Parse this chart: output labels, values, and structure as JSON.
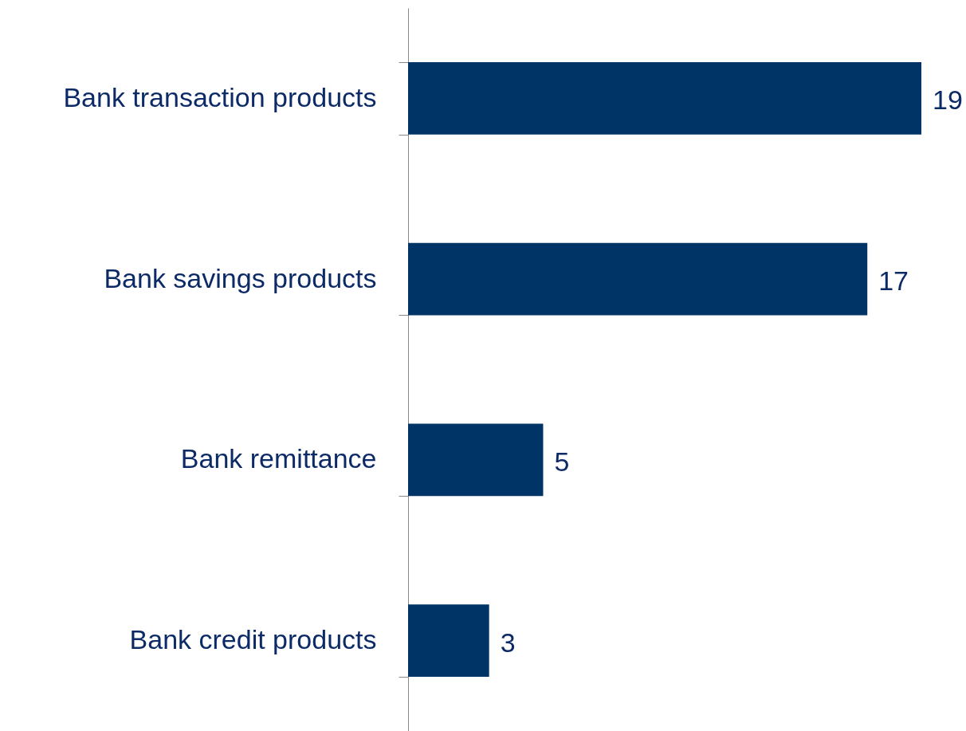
{
  "chart_data": {
    "type": "bar",
    "orientation": "horizontal",
    "categories": [
      "Bank transaction products",
      "Bank savings products",
      "Bank remittance",
      "Bank credit products"
    ],
    "values": [
      19,
      17,
      5,
      3
    ],
    "color": "#003466",
    "data_labels": true
  }
}
